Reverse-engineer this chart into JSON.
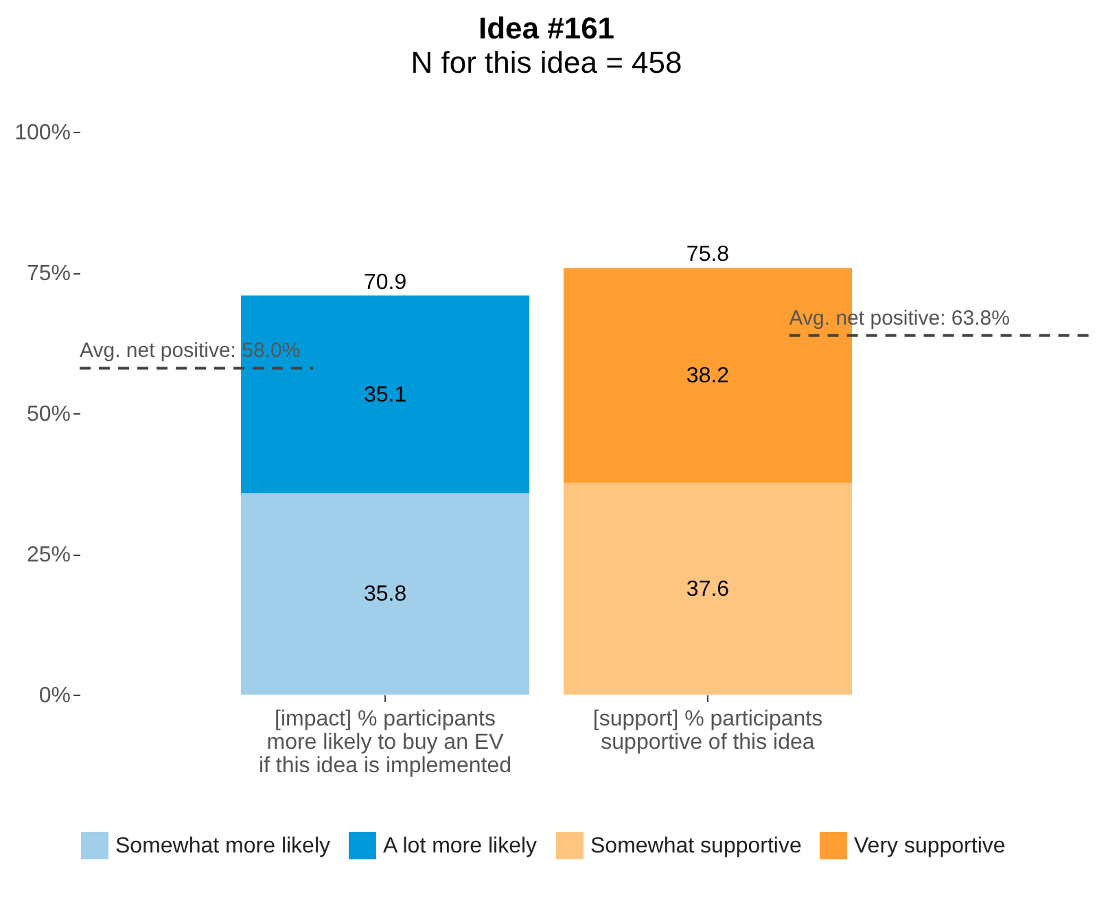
{
  "chart_data": {
    "type": "bar",
    "title": "Idea #161",
    "subtitle": "N for this idea = 458",
    "categories": [
      "[impact] % participants\nmore likely to buy an EV\nif this idea is implemented",
      "[support] % participants\nsupportive of this idea"
    ],
    "stacked": true,
    "data_labels": true,
    "totals": [
      "70.9",
      "75.8"
    ],
    "series": [
      {
        "name": "Somewhat more likely",
        "color": "#a1cfea",
        "values": [
          35.8,
          null
        ]
      },
      {
        "name": "A lot more likely",
        "color": "#009ada",
        "values": [
          35.1,
          null
        ]
      },
      {
        "name": "Somewhat supportive",
        "color": "#fec580",
        "values": [
          null,
          37.6
        ]
      },
      {
        "name": "Very supportive",
        "color": "#ff9f33",
        "values": [
          null,
          38.2
        ]
      }
    ],
    "ylim": [
      0,
      100
    ],
    "yticks": [
      {
        "value": 0,
        "label": "0%"
      },
      {
        "value": 25,
        "label": "25%"
      },
      {
        "value": 50,
        "label": "50%"
      },
      {
        "value": 75,
        "label": "75%"
      },
      {
        "value": 100,
        "label": "100%"
      }
    ],
    "ref_lines": [
      {
        "axis": "y",
        "value": 58.0,
        "label": "Avg. net positive: 58.0%",
        "line_style": "dashed"
      },
      {
        "axis": "y",
        "value": 63.8,
        "label": "Avg. net positive: 63.8%",
        "line_style": "dashed"
      }
    ],
    "grid": false,
    "legend": "bottom"
  }
}
